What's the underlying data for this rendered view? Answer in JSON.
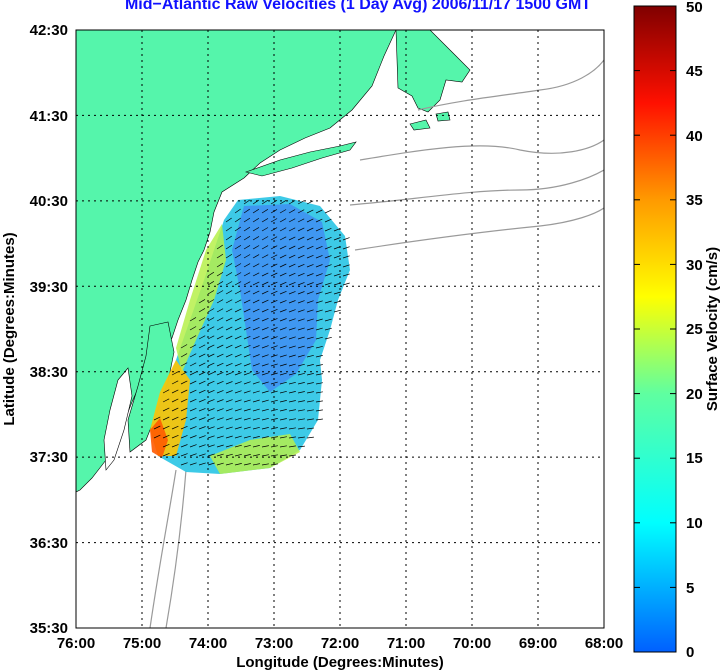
{
  "chart_data": {
    "type": "heatmap",
    "title": "Mid−Atlantic Raw Velocities (1 Day Avg) 2006/11/17 1500 GMT",
    "xlabel": "Longitude (Degrees:Minutes)",
    "ylabel": "Latitude (Degrees:Minutes)",
    "xticks": [
      "76:00",
      "75:00",
      "74:00",
      "73:00",
      "72:00",
      "71:00",
      "70:00",
      "69:00",
      "68:00"
    ],
    "yticks": [
      "42:30",
      "41:30",
      "40:30",
      "39:30",
      "38:30",
      "37:30",
      "36:30",
      "35:30"
    ],
    "xlim": [
      -76,
      -68
    ],
    "ylim": [
      35.5,
      42.5
    ],
    "grid": true,
    "colorbar": {
      "label": "Surface Velocity (cm/s)",
      "range": [
        0,
        50
      ],
      "ticks": [
        "0",
        "5",
        "10",
        "15",
        "20",
        "25",
        "30",
        "35",
        "40",
        "45",
        "50"
      ]
    }
  },
  "colors": {
    "land": "#55f5ab",
    "title": "#1010ff",
    "grid": "#000000",
    "coast_outline": "#9a9a9a"
  }
}
